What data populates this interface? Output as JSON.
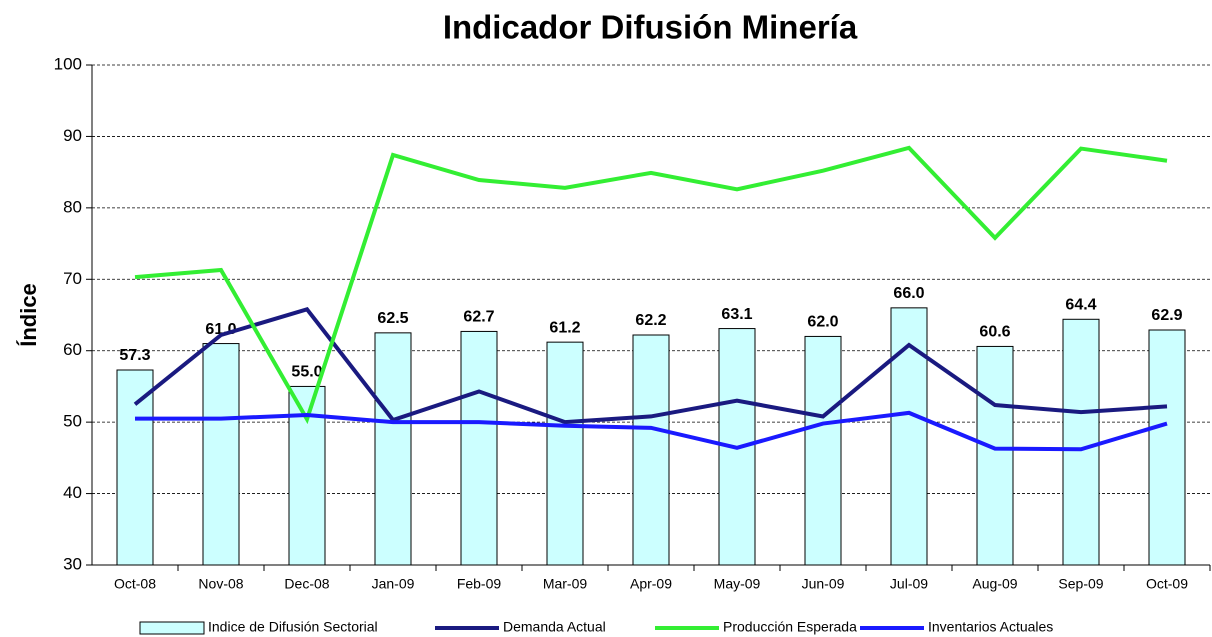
{
  "chart_data": {
    "type": "bar_line",
    "title": "Indicador Difusión Minería",
    "y_label": "Índice",
    "categories": [
      "Oct-08",
      "Nov-08",
      "Dec-08",
      "Jan-09",
      "Feb-09",
      "Mar-09",
      "Apr-09",
      "May-09",
      "Jun-09",
      "Jul-09",
      "Aug-09",
      "Sep-09",
      "Oct-09"
    ],
    "series": [
      {
        "name": "Indice de Difusión Sectorial",
        "kind": "bar",
        "color": "#ccffff",
        "values": [
          57.3,
          61.0,
          55.0,
          62.5,
          62.7,
          61.2,
          62.2,
          63.1,
          62.0,
          66.0,
          60.6,
          64.4,
          62.9
        ],
        "value_labels": [
          "57.3",
          "61.0",
          "55.0",
          "62.5",
          "62.7",
          "61.2",
          "62.2",
          "63.1",
          "62.0",
          "66.0",
          "60.6",
          "64.4",
          "62.9"
        ]
      },
      {
        "name": "Demanda Actual",
        "kind": "line",
        "color": "#1a1a80",
        "values": [
          52.5,
          62.2,
          65.8,
          50.3,
          54.3,
          50.0,
          50.8,
          53.0,
          50.8,
          60.8,
          52.4,
          51.4,
          52.2
        ]
      },
      {
        "name": "Producción Esperada",
        "kind": "line",
        "color": "#33ee33",
        "values": [
          70.3,
          71.3,
          50.4,
          87.4,
          83.9,
          82.8,
          84.9,
          82.6,
          85.2,
          88.4,
          75.8,
          88.3,
          86.6
        ]
      },
      {
        "name": "Inventarios Actuales",
        "kind": "line",
        "color": "#1a1aff",
        "values": [
          50.5,
          50.5,
          51.0,
          50.0,
          50.0,
          49.5,
          49.2,
          46.4,
          49.8,
          51.3,
          46.3,
          46.2,
          49.8
        ]
      }
    ],
    "ylim": [
      30,
      100
    ],
    "yticks": [
      30,
      40,
      50,
      60,
      70,
      80,
      90,
      100
    ],
    "grid": true
  }
}
